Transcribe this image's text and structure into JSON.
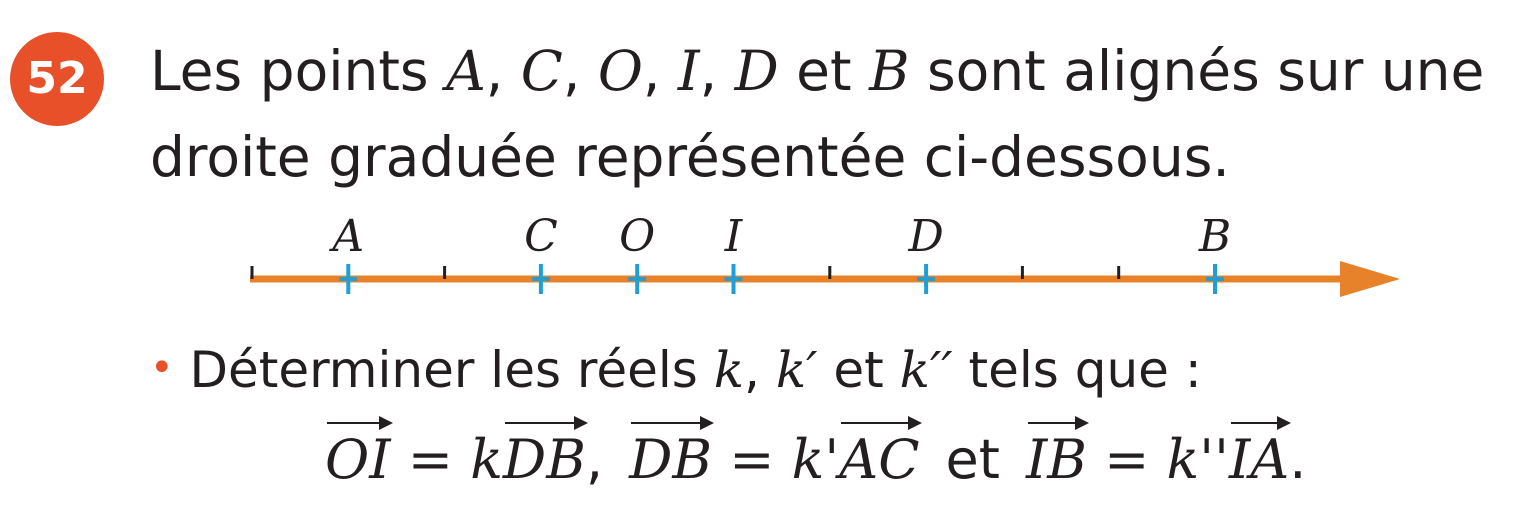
{
  "exercise": {
    "number": "52",
    "statement": {
      "p1": "Les points ",
      "A": "A",
      "s1": ", ",
      "C": "C",
      "s2": ", ",
      "O": "O",
      "s3": ", ",
      "I": "I",
      "s4": ", ",
      "D": "D",
      "s5": " et ",
      "B": "B",
      "p2": " sont alignés sur une",
      "line2": "droite graduée représentée ci-dessous."
    },
    "number_line": {
      "points": [
        {
          "label": "A",
          "grad": 1
        },
        {
          "label": "C",
          "grad": 3
        },
        {
          "label": "O",
          "grad": 4
        },
        {
          "label": "I",
          "grad": 5
        },
        {
          "label": "D",
          "grad": 7
        },
        {
          "label": "B",
          "grad": 10
        }
      ],
      "graduations": 11,
      "line_color": "#e8822a",
      "point_marker_color": "#1ea0d6",
      "tick_color": "#231f20"
    },
    "task": {
      "bullet": "•",
      "t1": "Déterminer les réels ",
      "k": "k",
      "s1": ", ",
      "k1": "k′",
      "s2": " et ",
      "k2": "k′′",
      "t2": " tels que :"
    },
    "equations": {
      "e1_lhs": "OI",
      "e1_eq": " = ",
      "e1_coef": "k",
      "e1_rhs": "DB",
      "sep1": ",",
      "e2_lhs": "DB",
      "e2_eq": " = ",
      "e2_coef": "k'",
      "e2_rhs": "AC",
      "sep2": "et",
      "e3_lhs": "IB",
      "e3_eq": " = ",
      "e3_coef": "k''",
      "e3_rhs": "IA",
      "end": "."
    },
    "colors": {
      "accent": "#e8502a",
      "text": "#231f20"
    }
  }
}
